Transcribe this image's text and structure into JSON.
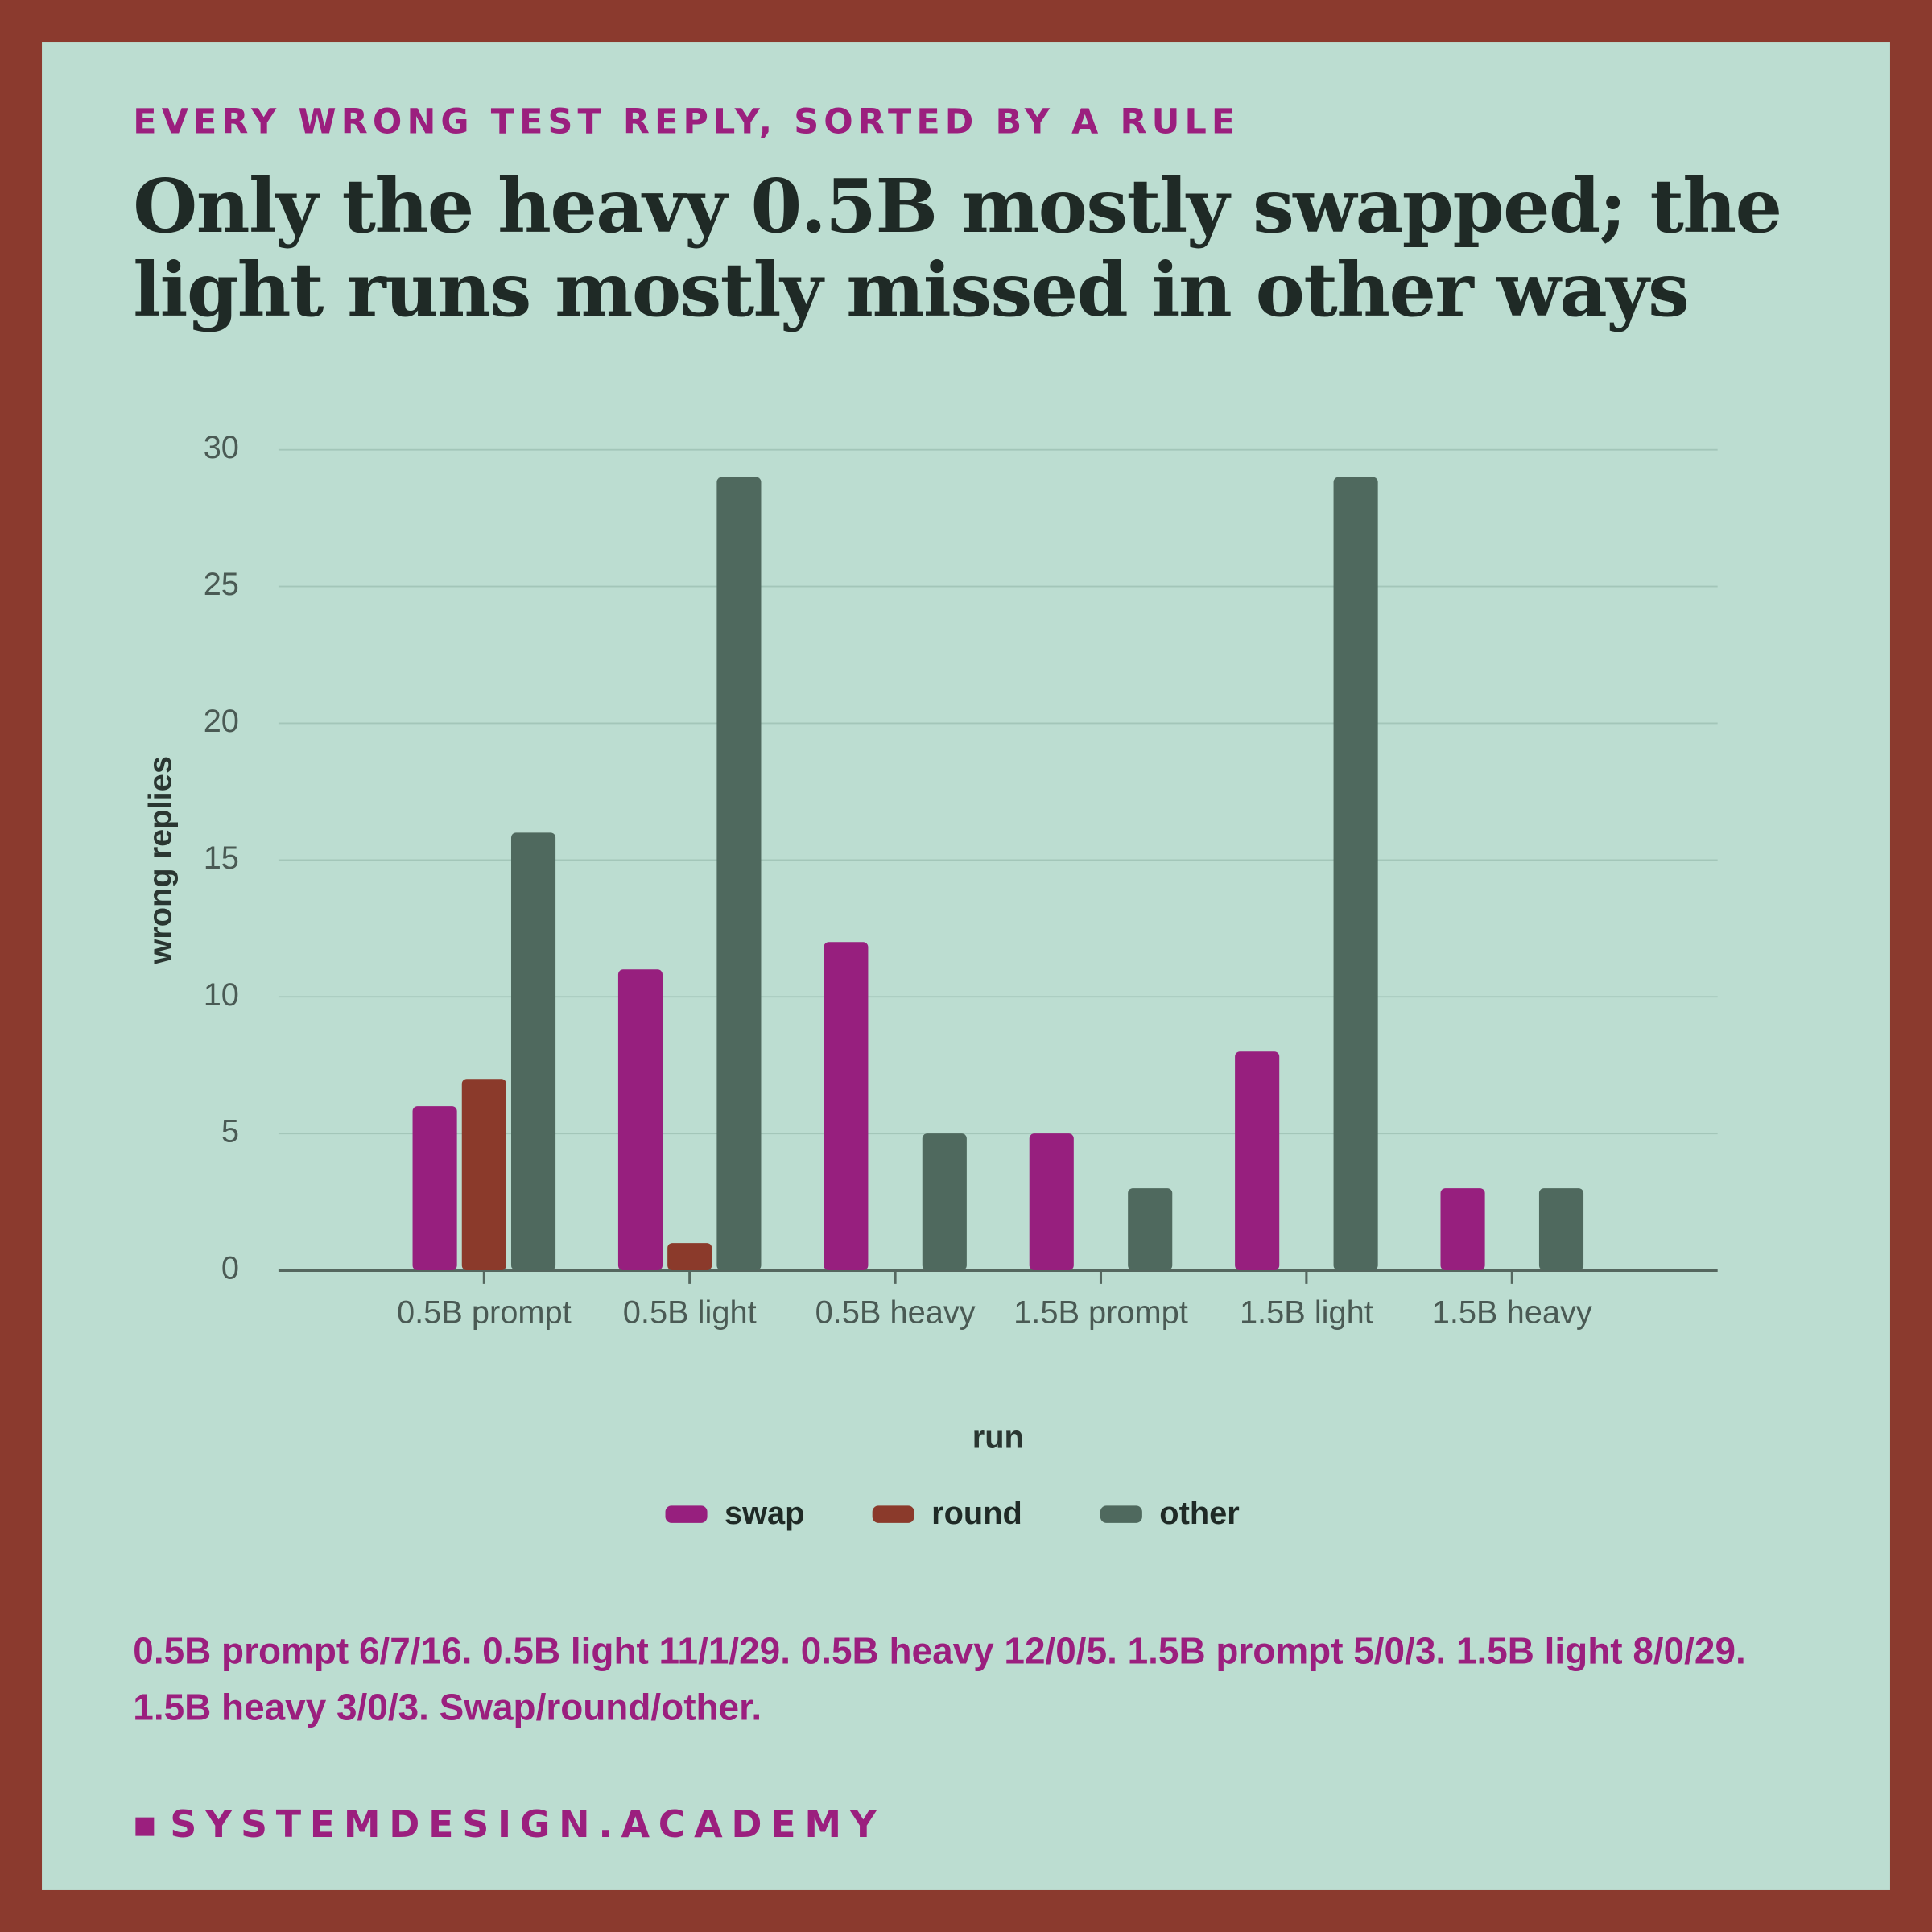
{
  "eyebrow": "EVERY WRONG TEST REPLY, SORTED BY A RULE",
  "chart_data": {
    "type": "bar",
    "title": "Only the heavy 0.5B mostly swapped; the light runs mostly missed in other ways",
    "x_label": "run",
    "y_label": "wrong replies",
    "categories": [
      "0.5B prompt",
      "0.5B light",
      "0.5B heavy",
      "1.5B prompt",
      "1.5B light",
      "1.5B heavy"
    ],
    "series": [
      {
        "name": "swap",
        "color": "#971f7e",
        "values": [
          6,
          11,
          12,
          5,
          8,
          3
        ]
      },
      {
        "name": "round",
        "color": "#8b3a2b",
        "values": [
          7,
          1,
          0,
          0,
          0,
          0
        ]
      },
      {
        "name": "other",
        "color": "#4f695e",
        "values": [
          16,
          29,
          5,
          3,
          29,
          3
        ]
      }
    ],
    "ylim": [
      0,
      30
    ],
    "yticks": [
      0,
      5,
      10,
      15,
      20,
      25,
      30
    ],
    "grid": true
  },
  "note": "0.5B prompt 6/7/16. 0.5B light 11/1/29. 0.5B heavy 12/0/5. 1.5B prompt 5/0/3. 1.5B light 8/0/29. 1.5B heavy 3/0/3. Swap/round/other.",
  "footer": "SYSTEMDESIGN.ACADEMY"
}
